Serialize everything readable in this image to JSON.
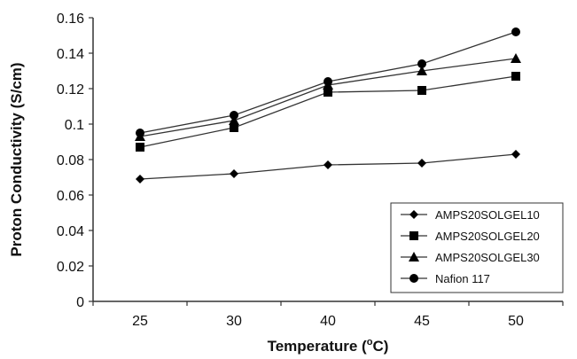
{
  "chart_data": {
    "type": "line",
    "categories": [
      "25",
      "30",
      "40",
      "45",
      "50"
    ],
    "series": [
      {
        "name": "AMPS20SOLGEL10",
        "marker": "diamond",
        "values": [
          0.069,
          0.072,
          0.077,
          0.078,
          0.083
        ]
      },
      {
        "name": "AMPS20SOLGEL20",
        "marker": "square",
        "values": [
          0.087,
          0.098,
          0.118,
          0.119,
          0.127
        ]
      },
      {
        "name": "AMPS20SOLGEL30",
        "marker": "triangle",
        "values": [
          0.093,
          0.102,
          0.122,
          0.13,
          0.137
        ]
      },
      {
        "name": "Nafion 117",
        "marker": "circle",
        "values": [
          0.095,
          0.105,
          0.124,
          0.134,
          0.152
        ]
      }
    ],
    "xlabel_main": "Temperature (",
    "xlabel_sup": "o",
    "xlabel_end": "C)",
    "ylabel": "Proton Conductivity (S/cm)",
    "ylim": [
      0,
      0.16
    ],
    "yticks": [
      0,
      0.02,
      0.04,
      0.06,
      0.08,
      0.1,
      0.12,
      0.14,
      0.16
    ],
    "ytick_labels": [
      "0",
      "0.02",
      "0.04",
      "0.06",
      "0.08",
      "0.1",
      "0.12",
      "0.14",
      "0.16"
    ],
    "grid": false,
    "legend_position": "bottom-right",
    "line_color": "#333333"
  }
}
